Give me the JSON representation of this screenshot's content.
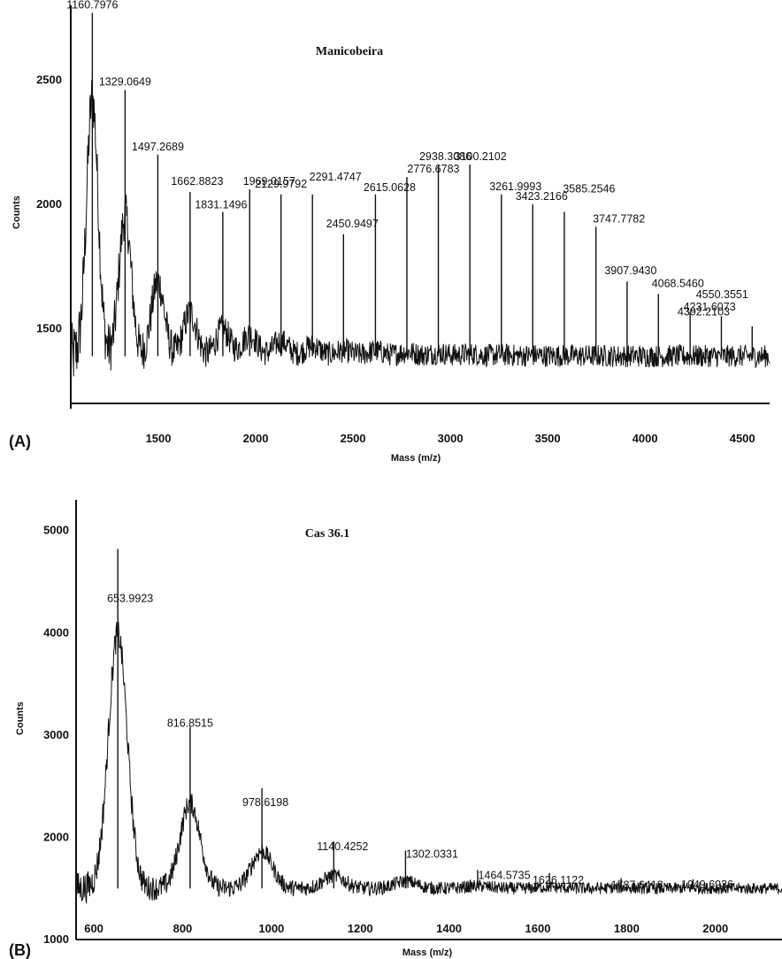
{
  "chart_data": [
    {
      "panel": "(A)",
      "type": "line",
      "title": "Manicobeira",
      "xlabel": "Mass (m/z)",
      "ylabel": "Counts",
      "xlim": [
        1050,
        4640
      ],
      "ylim": [
        1200,
        2800
      ],
      "xticks": [
        1500,
        2000,
        2500,
        3000,
        3500,
        4000,
        4500
      ],
      "yticks": [
        1500,
        2000,
        2500
      ],
      "baseline": 1390,
      "grid": false,
      "peaks": [
        {
          "x": 1160.7976,
          "y": 2770,
          "label": "1160.7976"
        },
        {
          "x": 1329.0649,
          "y": 2460,
          "label": "1329.0649"
        },
        {
          "x": 1497.2689,
          "y": 2200,
          "label": "1497.2689"
        },
        {
          "x": 1662.8823,
          "y": 2050,
          "label": "1662.8823"
        },
        {
          "x": 1831.1496,
          "y": 1970,
          "label": "1831.1496"
        },
        {
          "x": 1969.0157,
          "y": 2060,
          "label": "1969.0157"
        },
        {
          "x": 2129.9792,
          "y": 2040,
          "label": "2129.9792"
        },
        {
          "x": 2291.4747,
          "y": 2040,
          "label": "2291.4747"
        },
        {
          "x": 2450.9497,
          "y": 1880,
          "label": "2450.9497"
        },
        {
          "x": 2615.0628,
          "y": 2040,
          "label": "2615.0628"
        },
        {
          "x": 2776.6783,
          "y": 2110,
          "label": "2776.6783"
        },
        {
          "x": 2938.3086,
          "y": 2160,
          "label": "2938.3086"
        },
        {
          "x": 3100.2102,
          "y": 2160,
          "label": "3100.2102"
        },
        {
          "x": 3261.9993,
          "y": 2040,
          "label": "3261.9993"
        },
        {
          "x": 3423.2166,
          "y": 2000,
          "label": "3423.2166"
        },
        {
          "x": 3585.2546,
          "y": 1970,
          "label": "3585.2546"
        },
        {
          "x": 3747.7782,
          "y": 1910,
          "label": "3747.7782"
        },
        {
          "x": 3907.943,
          "y": 1690,
          "label": "3907.9430"
        },
        {
          "x": 4068.546,
          "y": 1640,
          "label": "4068.5460"
        },
        {
          "x": 4231.6073,
          "y": 1570,
          "label": "4231.6073"
        },
        {
          "x": 4392.2103,
          "y": 1550,
          "label": "4392.2103"
        },
        {
          "x": 4550.3551,
          "y": 1510,
          "label": "4550.3551"
        }
      ]
    },
    {
      "panel": "(B)",
      "type": "line",
      "title": "Cas 36.1",
      "xlabel": "Mass (m/z)",
      "ylabel": "Counts",
      "xlim": [
        560,
        2150
      ],
      "ylim": [
        1000,
        5300
      ],
      "xticks": [
        600,
        800,
        1000,
        1200,
        1400,
        1600,
        1800,
        2000
      ],
      "yticks": [
        1000,
        2000,
        3000,
        4000,
        5000
      ],
      "baseline": 1500,
      "grid": false,
      "peaks": [
        {
          "x": 653.9923,
          "y": 4820,
          "label": "653.9923"
        },
        {
          "x": 816.8515,
          "y": 3080,
          "label": "816.8515"
        },
        {
          "x": 978.6198,
          "y": 2480,
          "label": "978.6198"
        },
        {
          "x": 1140.4252,
          "y": 1960,
          "label": "1140.4252"
        },
        {
          "x": 1302.0331,
          "y": 1870,
          "label": "1302.0331"
        },
        {
          "x": 1464.5735,
          "y": 1680,
          "label": "1464.5735"
        },
        {
          "x": 1626.1122,
          "y": 1650,
          "label": "1626.1122"
        },
        {
          "x": 1787.6418,
          "y": 1600,
          "label": "1787.6418"
        },
        {
          "x": 1949.6936,
          "y": 1590,
          "label": "1949.6936"
        }
      ]
    }
  ]
}
